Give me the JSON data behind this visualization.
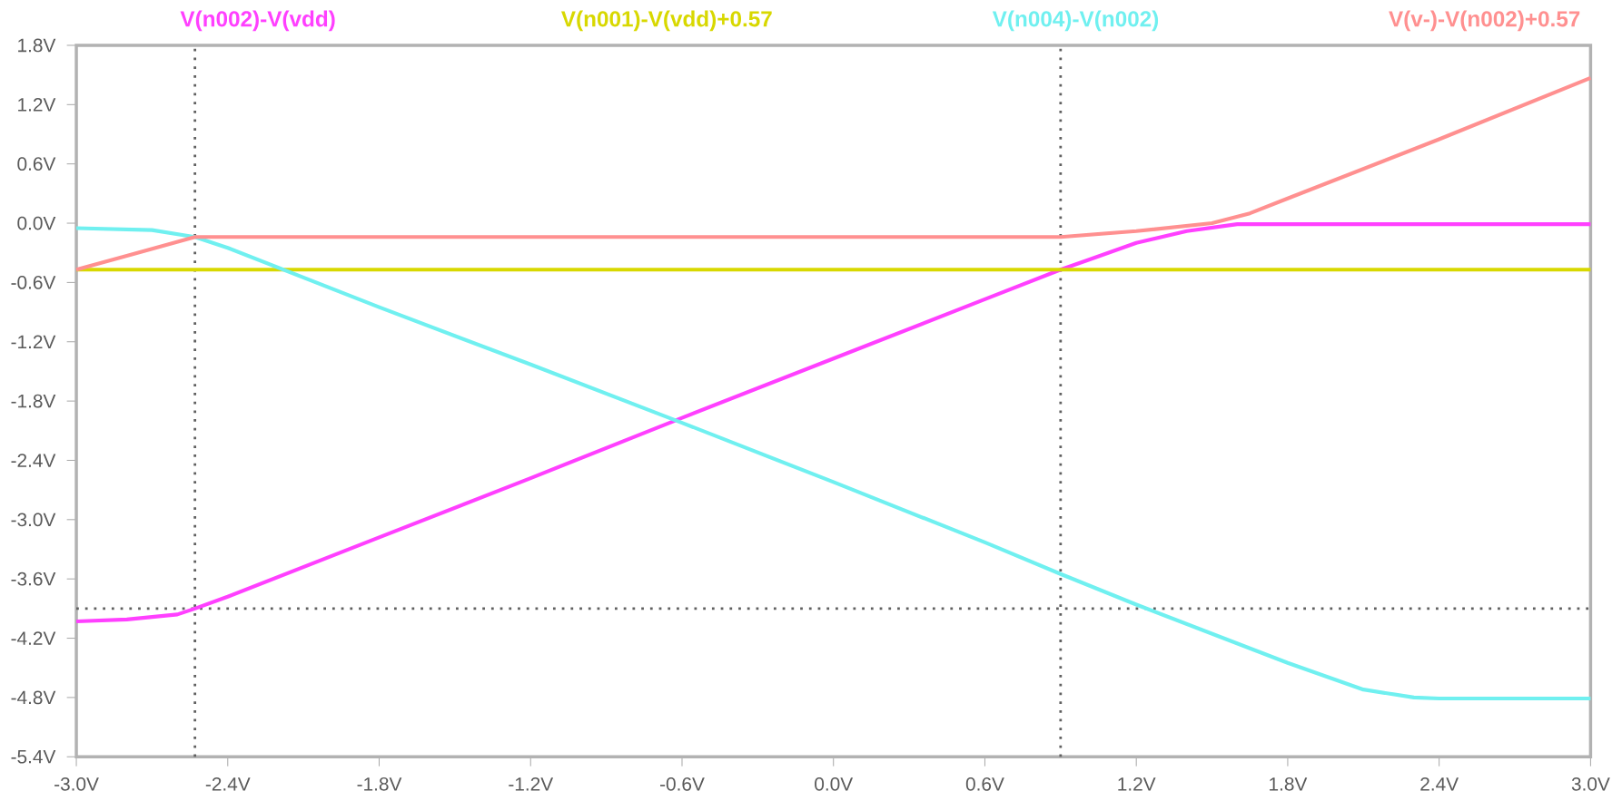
{
  "chart_data": {
    "type": "line",
    "xlim": [
      -3.0,
      3.0
    ],
    "ylim": [
      -5.4,
      1.8
    ],
    "xticks": [
      {
        "value": -3.0,
        "label": "-3.0V"
      },
      {
        "value": -2.4,
        "label": "-2.4V"
      },
      {
        "value": -1.8,
        "label": "-1.8V"
      },
      {
        "value": -1.2,
        "label": "-1.2V"
      },
      {
        "value": -0.6,
        "label": "-0.6V"
      },
      {
        "value": 0.0,
        "label": "0.0V"
      },
      {
        "value": 0.6,
        "label": "0.6V"
      },
      {
        "value": 1.2,
        "label": "1.2V"
      },
      {
        "value": 1.8,
        "label": "1.8V"
      },
      {
        "value": 2.4,
        "label": "2.4V"
      },
      {
        "value": 3.0,
        "label": "3.0V"
      }
    ],
    "yticks": [
      {
        "value": 1.8,
        "label": "1.8V"
      },
      {
        "value": 1.2,
        "label": "1.2V"
      },
      {
        "value": 0.6,
        "label": "0.6V"
      },
      {
        "value": 0.0,
        "label": "0.0V"
      },
      {
        "value": -0.6,
        "label": "-0.6V"
      },
      {
        "value": -1.2,
        "label": "-1.2V"
      },
      {
        "value": -1.8,
        "label": "-1.8V"
      },
      {
        "value": -2.4,
        "label": "-2.4V"
      },
      {
        "value": -3.0,
        "label": "-3.0V"
      },
      {
        "value": -3.6,
        "label": "-3.6V"
      },
      {
        "value": -4.2,
        "label": "-4.2V"
      },
      {
        "value": -4.8,
        "label": "-4.8V"
      },
      {
        "value": -5.4,
        "label": "-5.4V"
      }
    ],
    "legend": "top",
    "grid": false,
    "ref_lines": [
      {
        "axis": "x",
        "value": -2.53,
        "color": "#606060",
        "line_style": "dotted"
      },
      {
        "axis": "x",
        "value": 0.9,
        "color": "#606060",
        "line_style": "dotted"
      },
      {
        "axis": "y",
        "value": -3.9,
        "color": "#606060",
        "line_style": "dotted"
      }
    ],
    "series": [
      {
        "name": "V(n002)-V(vdd)",
        "color": "#ff40ff",
        "x": [
          -3.0,
          -2.8,
          -2.6,
          -2.53,
          -2.4,
          -1.8,
          -1.2,
          -0.6,
          0.0,
          0.6,
          0.9,
          1.0,
          1.2,
          1.4,
          1.6,
          1.7,
          2.4,
          3.0
        ],
        "values": [
          -4.03,
          -4.01,
          -3.96,
          -3.9,
          -3.78,
          -3.18,
          -2.58,
          -1.97,
          -1.37,
          -0.77,
          -0.47,
          -0.38,
          -0.2,
          -0.08,
          -0.01,
          -0.01,
          -0.01,
          -0.01
        ]
      },
      {
        "name": "V(n001)-V(vdd)+0.57",
        "color": "#d8d800",
        "x": [
          -3.0,
          3.0
        ],
        "values": [
          -0.47,
          -0.47
        ]
      },
      {
        "name": "V(n004)-V(n002)",
        "color": "#70f0f0",
        "x": [
          -3.0,
          -2.7,
          -2.53,
          -2.4,
          -1.8,
          -1.2,
          -0.6,
          0.0,
          0.6,
          0.9,
          1.2,
          1.8,
          2.1,
          2.3,
          2.4,
          3.0
        ],
        "values": [
          -0.05,
          -0.07,
          -0.14,
          -0.25,
          -0.85,
          -1.43,
          -2.02,
          -2.62,
          -3.23,
          -3.55,
          -3.86,
          -4.45,
          -4.72,
          -4.8,
          -4.81,
          -4.81
        ]
      },
      {
        "name": "V(v-)-V(n002)+0.57",
        "color": "#ff9090",
        "x": [
          -3.0,
          -2.8,
          -2.53,
          -2.4,
          0.0,
          0.9,
          1.2,
          1.5,
          1.65,
          1.8,
          2.4,
          3.0
        ],
        "values": [
          -0.47,
          -0.33,
          -0.14,
          -0.14,
          -0.14,
          -0.14,
          -0.08,
          0.0,
          0.1,
          0.25,
          0.85,
          1.47
        ]
      }
    ]
  }
}
